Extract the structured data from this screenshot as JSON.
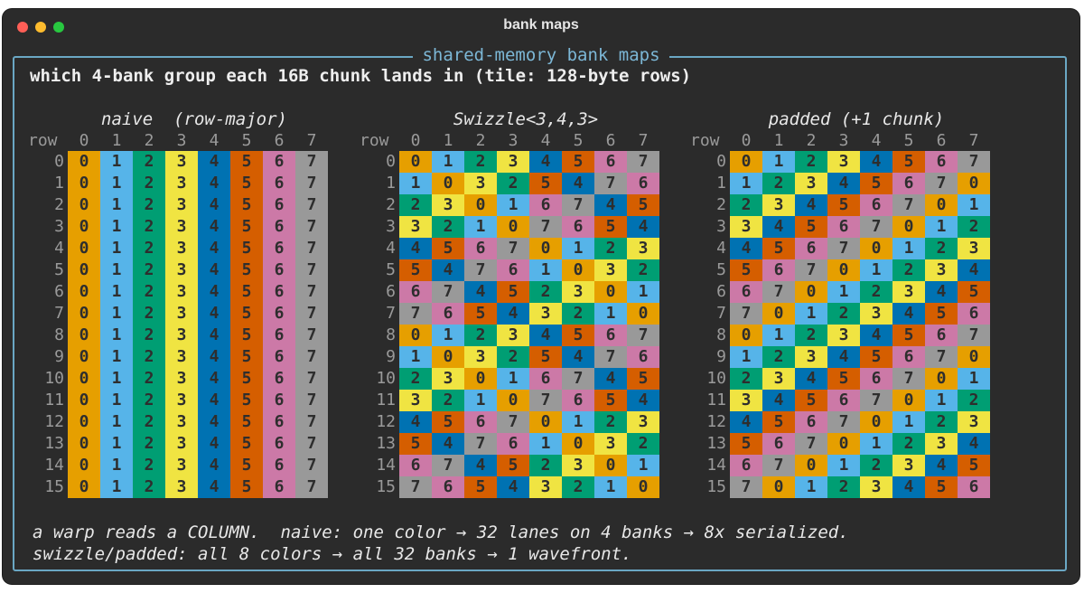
{
  "window": {
    "title": "bank maps"
  },
  "frame": {
    "title": "shared-memory bank maps"
  },
  "subtitle": "which 4-bank group each 16B chunk lands in (tile: 128-byte rows)",
  "header": {
    "row_label": "row",
    "col_labels": [
      "0",
      "1",
      "2",
      "3",
      "4",
      "5",
      "6",
      "7"
    ]
  },
  "row_labels": [
    "0",
    "1",
    "2",
    "3",
    "4",
    "5",
    "6",
    "7",
    "8",
    "9",
    "10",
    "11",
    "12",
    "13",
    "14",
    "15"
  ],
  "colors": {
    "0": "#e69f00",
    "1": "#56b4e9",
    "2": "#009e73",
    "3": "#f0e442",
    "4": "#0072b2",
    "5": "#d55e00",
    "6": "#cc79a7",
    "7": "#999999"
  },
  "panels": [
    {
      "title": "naive  (row-major)",
      "grid": [
        [
          0,
          1,
          2,
          3,
          4,
          5,
          6,
          7
        ],
        [
          0,
          1,
          2,
          3,
          4,
          5,
          6,
          7
        ],
        [
          0,
          1,
          2,
          3,
          4,
          5,
          6,
          7
        ],
        [
          0,
          1,
          2,
          3,
          4,
          5,
          6,
          7
        ],
        [
          0,
          1,
          2,
          3,
          4,
          5,
          6,
          7
        ],
        [
          0,
          1,
          2,
          3,
          4,
          5,
          6,
          7
        ],
        [
          0,
          1,
          2,
          3,
          4,
          5,
          6,
          7
        ],
        [
          0,
          1,
          2,
          3,
          4,
          5,
          6,
          7
        ],
        [
          0,
          1,
          2,
          3,
          4,
          5,
          6,
          7
        ],
        [
          0,
          1,
          2,
          3,
          4,
          5,
          6,
          7
        ],
        [
          0,
          1,
          2,
          3,
          4,
          5,
          6,
          7
        ],
        [
          0,
          1,
          2,
          3,
          4,
          5,
          6,
          7
        ],
        [
          0,
          1,
          2,
          3,
          4,
          5,
          6,
          7
        ],
        [
          0,
          1,
          2,
          3,
          4,
          5,
          6,
          7
        ],
        [
          0,
          1,
          2,
          3,
          4,
          5,
          6,
          7
        ],
        [
          0,
          1,
          2,
          3,
          4,
          5,
          6,
          7
        ]
      ]
    },
    {
      "title": "Swizzle<3,4,3>",
      "grid": [
        [
          0,
          1,
          2,
          3,
          4,
          5,
          6,
          7
        ],
        [
          1,
          0,
          3,
          2,
          5,
          4,
          7,
          6
        ],
        [
          2,
          3,
          0,
          1,
          6,
          7,
          4,
          5
        ],
        [
          3,
          2,
          1,
          0,
          7,
          6,
          5,
          4
        ],
        [
          4,
          5,
          6,
          7,
          0,
          1,
          2,
          3
        ],
        [
          5,
          4,
          7,
          6,
          1,
          0,
          3,
          2
        ],
        [
          6,
          7,
          4,
          5,
          2,
          3,
          0,
          1
        ],
        [
          7,
          6,
          5,
          4,
          3,
          2,
          1,
          0
        ],
        [
          0,
          1,
          2,
          3,
          4,
          5,
          6,
          7
        ],
        [
          1,
          0,
          3,
          2,
          5,
          4,
          7,
          6
        ],
        [
          2,
          3,
          0,
          1,
          6,
          7,
          4,
          5
        ],
        [
          3,
          2,
          1,
          0,
          7,
          6,
          5,
          4
        ],
        [
          4,
          5,
          6,
          7,
          0,
          1,
          2,
          3
        ],
        [
          5,
          4,
          7,
          6,
          1,
          0,
          3,
          2
        ],
        [
          6,
          7,
          4,
          5,
          2,
          3,
          0,
          1
        ],
        [
          7,
          6,
          5,
          4,
          3,
          2,
          1,
          0
        ]
      ]
    },
    {
      "title": "padded (+1 chunk)",
      "grid": [
        [
          0,
          1,
          2,
          3,
          4,
          5,
          6,
          7
        ],
        [
          1,
          2,
          3,
          4,
          5,
          6,
          7,
          0
        ],
        [
          2,
          3,
          4,
          5,
          6,
          7,
          0,
          1
        ],
        [
          3,
          4,
          5,
          6,
          7,
          0,
          1,
          2
        ],
        [
          4,
          5,
          6,
          7,
          0,
          1,
          2,
          3
        ],
        [
          5,
          6,
          7,
          0,
          1,
          2,
          3,
          4
        ],
        [
          6,
          7,
          0,
          1,
          2,
          3,
          4,
          5
        ],
        [
          7,
          0,
          1,
          2,
          3,
          4,
          5,
          6
        ],
        [
          0,
          1,
          2,
          3,
          4,
          5,
          6,
          7
        ],
        [
          1,
          2,
          3,
          4,
          5,
          6,
          7,
          0
        ],
        [
          2,
          3,
          4,
          5,
          6,
          7,
          0,
          1
        ],
        [
          3,
          4,
          5,
          6,
          7,
          0,
          1,
          2
        ],
        [
          4,
          5,
          6,
          7,
          0,
          1,
          2,
          3
        ],
        [
          5,
          6,
          7,
          0,
          1,
          2,
          3,
          4
        ],
        [
          6,
          7,
          0,
          1,
          2,
          3,
          4,
          5
        ],
        [
          7,
          0,
          1,
          2,
          3,
          4,
          5,
          6
        ]
      ]
    }
  ],
  "footer": {
    "line1": "a warp reads a COLUMN.  naive: one color → 32 lanes on 4 banks → 8x serialized.",
    "line2": "swizzle/padded: all 8 colors → all 32 banks → 1 wavefront."
  }
}
